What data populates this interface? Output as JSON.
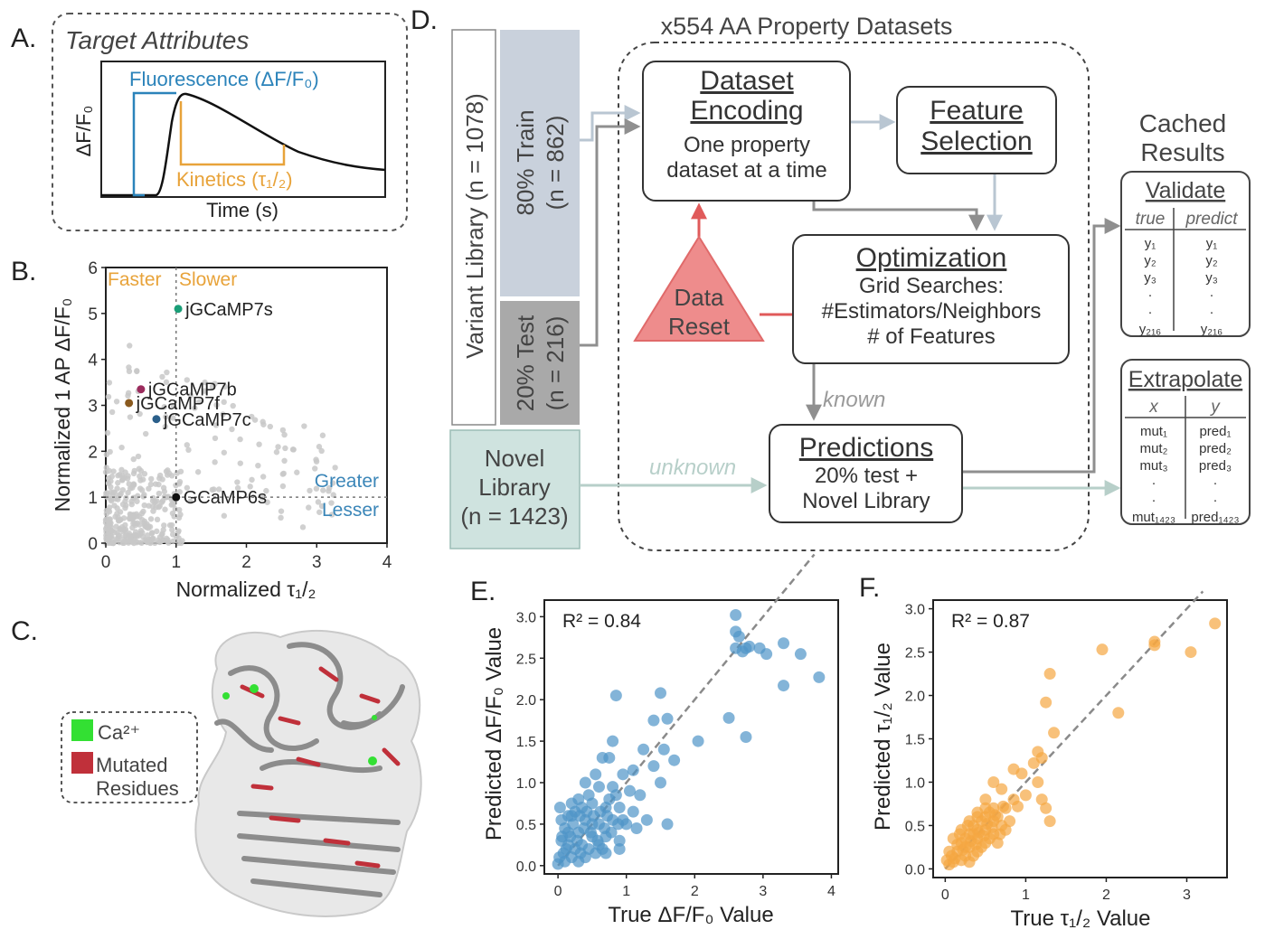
{
  "panel_letters": {
    "a": "A.",
    "b": "B.",
    "c": "C.",
    "d": "D.",
    "e": "E.",
    "f": "F."
  },
  "panel_a": {
    "title": "Target Attributes",
    "ylabel": "ΔF/F₀",
    "xlabel": "Time (s)",
    "fluorescence_label": "Fluorescence (ΔF/F₀)",
    "kinetics_label": "Kinetics (τ₁/₂)",
    "colors": {
      "fluorescence": "#2b83ba",
      "kinetics": "#e8a33a"
    }
  },
  "chart_data": [
    {
      "id": "B",
      "type": "scatter",
      "xlabel": "Normalized τ₁/₂",
      "ylabel": "Normalized 1 AP ΔF/F₀",
      "xlim": [
        0,
        4
      ],
      "ylim": [
        0,
        6
      ],
      "xticks": [
        "0",
        "1",
        "2",
        "3",
        "4"
      ],
      "yticks": [
        "0",
        "1",
        "2",
        "3",
        "4",
        "5",
        "6"
      ],
      "annotations": {
        "faster": "Faster",
        "slower": "Slower",
        "greater": "Greater",
        "lesser": "Lesser"
      },
      "reference_lines": {
        "x": 1,
        "y": 1
      },
      "labeled_points": [
        {
          "name": "jGCaMP7s",
          "x": 1.03,
          "y": 5.1,
          "color": "#1a9e77"
        },
        {
          "name": "jGCaMP7b",
          "x": 0.5,
          "y": 3.35,
          "color": "#9b2c5d"
        },
        {
          "name": "jGCaMP7f",
          "x": 0.33,
          "y": 3.05,
          "color": "#8a5a1f"
        },
        {
          "name": "jGCaMP7c",
          "x": 0.72,
          "y": 2.7,
          "color": "#2b5f8a"
        },
        {
          "name": "GCaMP6s",
          "x": 1.0,
          "y": 1.0,
          "color": "#111111"
        }
      ],
      "background_point_color": "#c8c8c8"
    },
    {
      "id": "E",
      "type": "scatter",
      "xlabel": "True ΔF/F₀ Value",
      "ylabel": "Predicted ΔF/F₀ Value",
      "annotation": "R² = 0.84",
      "xlim": [
        -0.2,
        4.1
      ],
      "ylim": [
        -0.1,
        3.2
      ],
      "xticks": [
        "0",
        "1",
        "2",
        "3",
        "4"
      ],
      "yticks": [
        "0.0",
        "0.5",
        "1.0",
        "1.5",
        "2.0",
        "2.5",
        "3.0"
      ],
      "color": "#4f94c8",
      "points": [
        [
          2.6,
          3.02
        ],
        [
          2.6,
          2.82
        ],
        [
          2.65,
          2.76
        ],
        [
          2.6,
          2.62
        ],
        [
          2.7,
          2.58
        ],
        [
          2.8,
          2.64
        ],
        [
          2.95,
          2.62
        ],
        [
          3.05,
          2.55
        ],
        [
          2.75,
          2.62
        ],
        [
          3.3,
          2.68
        ],
        [
          3.55,
          2.55
        ],
        [
          3.82,
          2.27
        ],
        [
          3.3,
          2.17
        ],
        [
          2.75,
          1.55
        ],
        [
          2.5,
          1.78
        ],
        [
          0.85,
          2.05
        ],
        [
          1.5,
          2.08
        ],
        [
          1.6,
          1.77
        ],
        [
          1.4,
          1.75
        ],
        [
          0.8,
          1.5
        ],
        [
          1.25,
          1.4
        ],
        [
          1.55,
          1.4
        ],
        [
          2.05,
          1.5
        ],
        [
          1.7,
          1.27
        ],
        [
          0.65,
          1.3
        ],
        [
          0.75,
          1.3
        ],
        [
          0.55,
          1.1
        ],
        [
          1.1,
          1.15
        ],
        [
          1.4,
          1.2
        ],
        [
          0.95,
          1.1
        ],
        [
          0.4,
          1.0
        ],
        [
          0.6,
          0.95
        ],
        [
          0.8,
          0.95
        ],
        [
          1.05,
          0.9
        ],
        [
          1.2,
          0.85
        ],
        [
          1.5,
          1.0
        ],
        [
          0.3,
          0.8
        ],
        [
          0.5,
          0.75
        ],
        [
          0.7,
          0.7
        ],
        [
          0.9,
          0.7
        ],
        [
          1.1,
          0.65
        ],
        [
          0.2,
          0.6
        ],
        [
          0.4,
          0.55
        ],
        [
          0.6,
          0.5
        ],
        [
          0.8,
          0.55
        ],
        [
          1.0,
          0.5
        ],
        [
          1.3,
          0.55
        ],
        [
          1.6,
          0.5
        ],
        [
          0.1,
          0.45
        ],
        [
          0.3,
          0.4
        ],
        [
          0.5,
          0.35
        ],
        [
          0.7,
          0.35
        ],
        [
          0.9,
          0.3
        ],
        [
          0.05,
          0.3
        ],
        [
          0.15,
          0.25
        ],
        [
          0.25,
          0.2
        ],
        [
          0.35,
          0.25
        ],
        [
          0.45,
          0.2
        ],
        [
          0.55,
          0.15
        ],
        [
          0.65,
          0.2
        ],
        [
          0.02,
          0.1
        ],
        [
          0.1,
          0.05
        ],
        [
          0.2,
          0.1
        ],
        [
          0.3,
          0.05
        ],
        [
          0.4,
          0.1
        ],
        [
          0.0,
          0.02
        ],
        [
          0.08,
          0.15
        ],
        [
          0.18,
          0.35
        ],
        [
          0.28,
          0.3
        ],
        [
          0.38,
          0.45
        ],
        [
          0.48,
          0.4
        ],
        [
          0.58,
          0.3
        ],
        [
          0.68,
          0.45
        ],
        [
          0.78,
          0.4
        ],
        [
          0.88,
          0.5
        ],
        [
          0.12,
          0.2
        ],
        [
          0.22,
          0.5
        ],
        [
          0.32,
          0.6
        ],
        [
          0.42,
          0.65
        ],
        [
          0.52,
          0.6
        ],
        [
          0.62,
          0.65
        ],
        [
          0.72,
          0.6
        ],
        [
          0.05,
          0.55
        ],
        [
          0.15,
          0.6
        ],
        [
          0.25,
          0.65
        ],
        [
          0.03,
          0.7
        ],
        [
          0.2,
          0.75
        ],
        [
          0.35,
          0.7
        ],
        [
          0.95,
          0.55
        ],
        [
          1.15,
          0.45
        ],
        [
          0.75,
          0.8
        ],
        [
          0.85,
          0.85
        ],
        [
          0.45,
          0.85
        ],
        [
          0.15,
          0.4
        ],
        [
          0.06,
          0.35
        ],
        [
          0.5,
          0.5
        ],
        [
          0.33,
          0.15
        ],
        [
          0.6,
          0.25
        ],
        [
          0.7,
          0.15
        ],
        [
          0.9,
          0.2
        ]
      ]
    },
    {
      "id": "F",
      "type": "scatter",
      "xlabel": "True τ₁/₂ Value",
      "ylabel": "Predicted τ₁/₂ Value",
      "annotation": "R² = 0.87",
      "xlim": [
        -0.15,
        3.5
      ],
      "ylim": [
        -0.1,
        3.1
      ],
      "xticks": [
        "0",
        "1",
        "2",
        "3"
      ],
      "yticks": [
        "0.0",
        "0.5",
        "1.0",
        "1.5",
        "2.0",
        "2.5",
        "3.0"
      ],
      "color": "#f5a742",
      "points": [
        [
          3.35,
          2.83
        ],
        [
          3.05,
          2.5
        ],
        [
          2.6,
          2.62
        ],
        [
          2.6,
          2.58
        ],
        [
          1.95,
          2.53
        ],
        [
          2.15,
          1.8
        ],
        [
          1.3,
          2.25
        ],
        [
          1.25,
          1.92
        ],
        [
          1.35,
          1.57
        ],
        [
          1.15,
          1.35
        ],
        [
          1.2,
          1.28
        ],
        [
          1.1,
          1.22
        ],
        [
          0.85,
          1.15
        ],
        [
          0.95,
          1.1
        ],
        [
          1.15,
          1.0
        ],
        [
          1.25,
          0.7
        ],
        [
          1.3,
          0.55
        ],
        [
          0.6,
          1.0
        ],
        [
          0.7,
          0.92
        ],
        [
          0.85,
          0.8
        ],
        [
          1.0,
          0.85
        ],
        [
          1.2,
          0.8
        ],
        [
          0.5,
          0.8
        ],
        [
          0.6,
          0.7
        ],
        [
          0.75,
          0.7
        ],
        [
          0.9,
          0.72
        ],
        [
          0.4,
          0.65
        ],
        [
          0.5,
          0.6
        ],
        [
          0.6,
          0.55
        ],
        [
          0.7,
          0.5
        ],
        [
          0.8,
          0.55
        ],
        [
          0.3,
          0.55
        ],
        [
          0.4,
          0.45
        ],
        [
          0.5,
          0.45
        ],
        [
          0.6,
          0.4
        ],
        [
          0.2,
          0.45
        ],
        [
          0.3,
          0.4
        ],
        [
          0.4,
          0.35
        ],
        [
          0.5,
          0.3
        ],
        [
          0.1,
          0.35
        ],
        [
          0.2,
          0.3
        ],
        [
          0.3,
          0.25
        ],
        [
          0.4,
          0.2
        ],
        [
          0.05,
          0.2
        ],
        [
          0.15,
          0.2
        ],
        [
          0.25,
          0.15
        ],
        [
          0.35,
          0.15
        ],
        [
          0.02,
          0.1
        ],
        [
          0.1,
          0.08
        ],
        [
          0.2,
          0.1
        ],
        [
          0.3,
          0.08
        ],
        [
          0.45,
          0.25
        ],
        [
          0.55,
          0.35
        ],
        [
          0.65,
          0.3
        ],
        [
          0.35,
          0.5
        ],
        [
          0.45,
          0.55
        ],
        [
          0.25,
          0.35
        ],
        [
          0.15,
          0.28
        ],
        [
          0.08,
          0.15
        ],
        [
          0.55,
          0.65
        ],
        [
          0.65,
          0.6
        ],
        [
          0.75,
          0.45
        ],
        [
          0.28,
          0.5
        ],
        [
          0.18,
          0.4
        ],
        [
          0.38,
          0.28
        ],
        [
          0.48,
          0.38
        ],
        [
          0.58,
          0.48
        ],
        [
          0.68,
          0.4
        ],
        [
          0.12,
          0.12
        ],
        [
          0.22,
          0.22
        ],
        [
          0.32,
          0.32
        ],
        [
          0.42,
          0.42
        ],
        [
          0.52,
          0.52
        ],
        [
          0.62,
          0.62
        ],
        [
          0.72,
          0.72
        ],
        [
          0.05,
          0.05
        ],
        [
          0.4,
          0.6
        ],
        [
          0.5,
          0.7
        ],
        [
          0.35,
          0.4
        ],
        [
          0.25,
          0.25
        ]
      ]
    }
  ],
  "panel_c": {
    "legend_ca": "Ca²⁺",
    "legend_mutated": "Mutated Residues",
    "colors": {
      "ca": "#33e033",
      "mutated": "#c0303a"
    }
  },
  "panel_d": {
    "datasets_title": "x554 AA Property Datasets",
    "variant_library": "Variant Library (n = 1078)",
    "train_label": "80% Train",
    "train_n": "(n = 862)",
    "test_label": "20% Test",
    "test_n": "(n = 216)",
    "novel_library": [
      "Novel",
      "Library",
      "(n = 1423)"
    ],
    "encoding_title": [
      "Dataset",
      "Encoding"
    ],
    "encoding_sub": [
      "One property",
      "dataset at a time"
    ],
    "feature_title": [
      "Feature",
      "Selection"
    ],
    "data_reset": [
      "Data",
      "Reset"
    ],
    "optimization_title": "Optimization",
    "optimization_sub": [
      "Grid Searches:",
      "#Estimators/Neighbors",
      "# of Features"
    ],
    "known": "known",
    "unknown": "unknown",
    "predictions_title": "Predictions",
    "predictions_sub": [
      "20% test +",
      "Novel Library"
    ],
    "cached_results": [
      "Cached",
      "Results"
    ],
    "validate": {
      "title": "Validate",
      "col1": "true",
      "col2": "predict",
      "true_rows": [
        "y₁",
        "y₂",
        "y₃",
        "·",
        "·",
        "y₂₁₆"
      ],
      "pred_rows": [
        "y₁",
        "y₂",
        "y₃",
        "·",
        "·",
        "y₂₁₆"
      ]
    },
    "extrapolate": {
      "title": "Extrapolate",
      "col1": "x",
      "col2": "y",
      "x_rows": [
        "mut₁",
        "mut₂",
        "mut₃",
        "·",
        "·",
        "mut₁₄₂₃"
      ],
      "y_rows": [
        "pred₁",
        "pred₂",
        "pred₃",
        "·",
        "·",
        "pred₁₄₂₃"
      ]
    },
    "colors": {
      "train": "#c9d1dc",
      "test": "#a9a9a9",
      "novel": "#cfe3df",
      "reset": "#ee8c8c",
      "arrow": "#9a9a9a"
    }
  }
}
